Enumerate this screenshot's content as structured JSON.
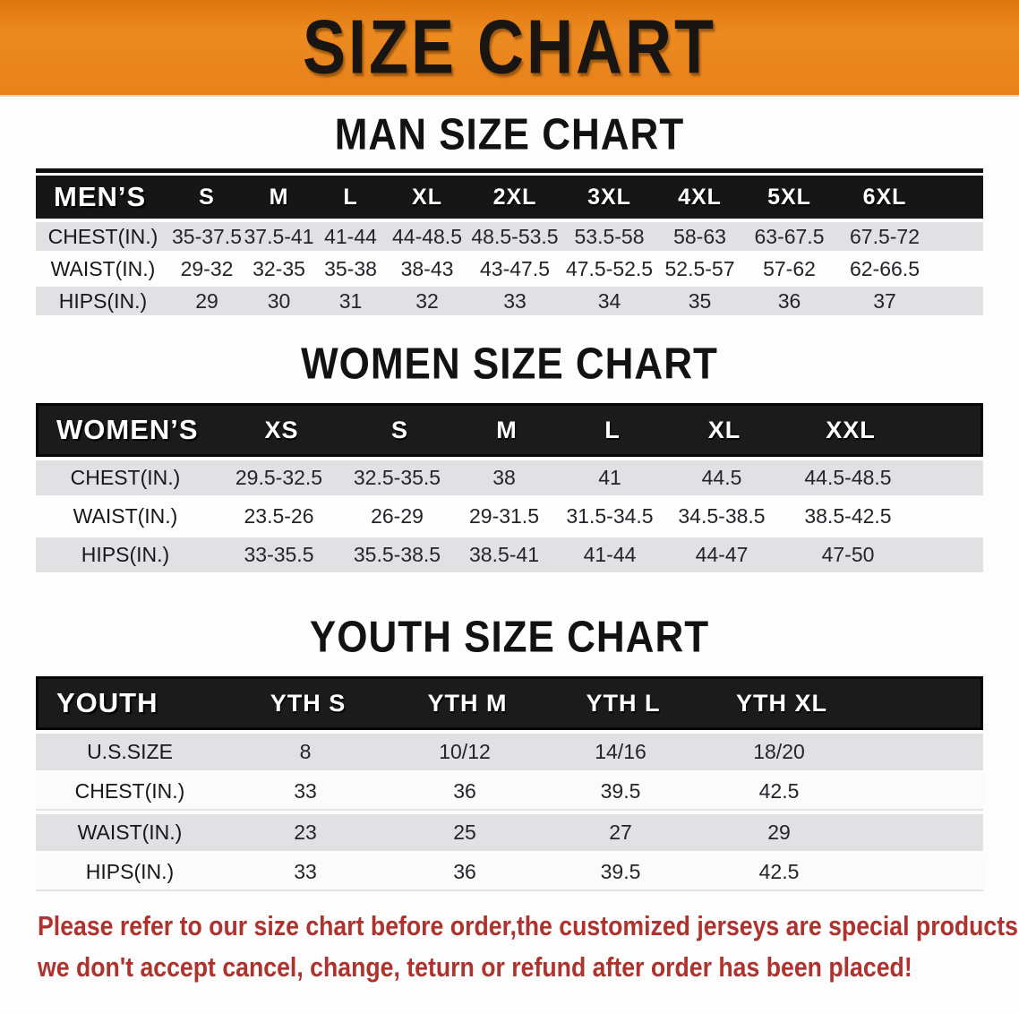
{
  "banner": {
    "title": "SIZE CHART",
    "bg": "#E8811A"
  },
  "sections": [
    {
      "id": "men",
      "heading": "MAN SIZE CHART",
      "table": {
        "label": "MEN’S",
        "columns": [
          "S",
          "M",
          "L",
          "XL",
          "2XL",
          "3XL",
          "4XL",
          "5XL",
          "6XL"
        ],
        "rows": [
          {
            "label": "CHEST(IN.)",
            "values": [
              "35-37.5",
              "37.5-41",
              "41-44",
              "44-48.5",
              "48.5-53.5",
              "53.5-58",
              "58-63",
              "63-67.5",
              "67.5-72"
            ]
          },
          {
            "label": "WAIST(IN.)",
            "values": [
              "29-32",
              "32-35",
              "35-38",
              "38-43",
              "43-47.5",
              "47.5-52.5",
              "52.5-57",
              "57-62",
              "62-66.5"
            ]
          },
          {
            "label": "HIPS(IN.)",
            "values": [
              "29",
              "30",
              "31",
              "32",
              "33",
              "34",
              "35",
              "36",
              "37"
            ]
          }
        ]
      }
    },
    {
      "id": "women",
      "heading": "WOMEN SIZE CHART",
      "table": {
        "label": "WOMEN’S",
        "columns": [
          "XS",
          "S",
          "M",
          "L",
          "XL",
          "XXL"
        ],
        "rows": [
          {
            "label": "CHEST(IN.)",
            "values": [
              "29.5-32.5",
              "32.5-35.5",
              "38",
              "41",
              "44.5",
              "44.5-48.5"
            ]
          },
          {
            "label": "WAIST(IN.)",
            "values": [
              "23.5-26",
              "26-29",
              "29-31.5",
              "31.5-34.5",
              "34.5-38.5",
              "38.5-42.5"
            ]
          },
          {
            "label": "HIPS(IN.)",
            "values": [
              "33-35.5",
              "35.5-38.5",
              "38.5-41",
              "41-44",
              "44-47",
              "47-50"
            ]
          }
        ]
      }
    },
    {
      "id": "youth",
      "heading": "YOUTH SIZE CHART",
      "table": {
        "label": "YOUTH",
        "columns": [
          "YTH S",
          "YTH M",
          "YTH L",
          "YTH XL"
        ],
        "rows": [
          {
            "label": "U.S.SIZE",
            "values": [
              "8",
              "10/12",
              "14/16",
              "18/20"
            ]
          },
          {
            "label": "CHEST(IN.)",
            "values": [
              "33",
              "36",
              "39.5",
              "42.5"
            ]
          },
          {
            "label": "WAIST(IN.)",
            "values": [
              "23",
              "25",
              "27",
              "29"
            ]
          },
          {
            "label": "HIPS(IN.)",
            "values": [
              "33",
              "36",
              "39.5",
              "42.5"
            ]
          }
        ]
      }
    }
  ],
  "disclaimer": {
    "line1": "Please refer to our size chart before order,the customized jerseys are special products,",
    "line2": "we don't accept cancel, change, teturn or refund after order has been placed!",
    "color": "#AE332E"
  }
}
